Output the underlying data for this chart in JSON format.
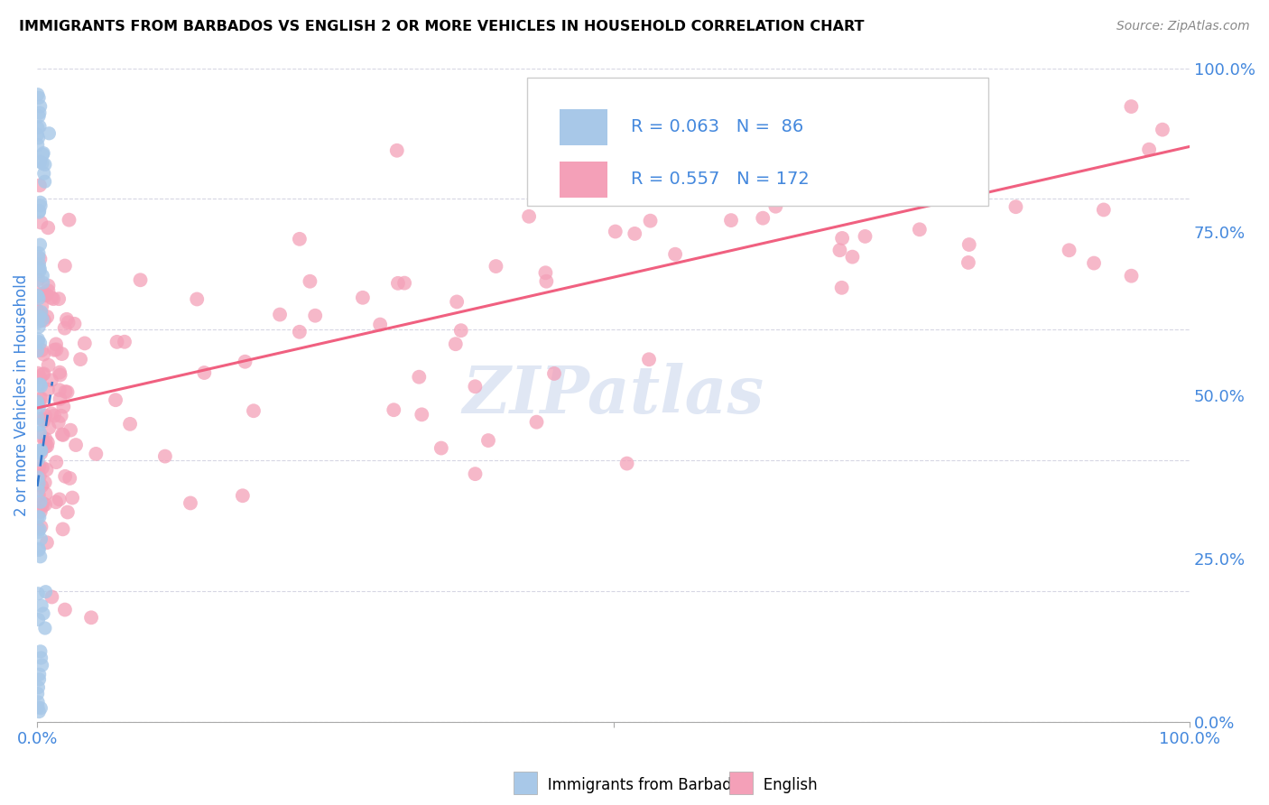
{
  "title": "IMMIGRANTS FROM BARBADOS VS ENGLISH 2 OR MORE VEHICLES IN HOUSEHOLD CORRELATION CHART",
  "source": "Source: ZipAtlas.com",
  "ylabel": "2 or more Vehicles in Household",
  "legend_label1": "R = 0.063   N =  86",
  "legend_label2": "R = 0.557   N = 172",
  "R1": 0.063,
  "N1": 86,
  "R2": 0.557,
  "N2": 172,
  "color_blue_scatter": "#a8c8e8",
  "color_pink_scatter": "#f4a0b8",
  "color_blue_line": "#3377cc",
  "color_pink_line": "#f06080",
  "title_fontsize": 11.5,
  "source_fontsize": 10,
  "legend_fontsize": 14,
  "axis_label_color": "#4488dd",
  "watermark_color": "#ccd8ee",
  "watermark_alpha": 0.6
}
